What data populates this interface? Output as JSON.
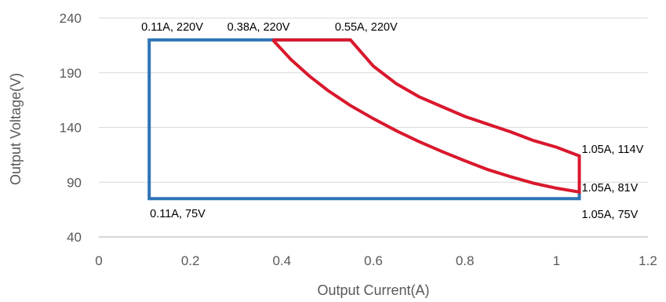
{
  "chart_data": {
    "type": "line",
    "title": "",
    "xlabel": "Output Current(A)",
    "ylabel": "Output Voltage(V)",
    "xlim": [
      0,
      1.2
    ],
    "ylim": [
      40,
      240
    ],
    "xticks": [
      0,
      0.2,
      0.4,
      0.6,
      0.8,
      1,
      1.2
    ],
    "xtick_labels": [
      "0",
      "0.2",
      "0.4",
      "0.6",
      "0.8",
      "1",
      "1.2"
    ],
    "yticks": [
      40,
      90,
      140,
      190,
      240
    ],
    "ytick_labels": [
      "40",
      "90",
      "140",
      "190",
      "240"
    ],
    "grid": "horizontal",
    "legend": "none",
    "series": [
      {
        "color": "#2e75b6",
        "points": [
          [
            0.11,
            220
          ],
          [
            0.38,
            220
          ],
          [
            0.55,
            220
          ],
          [
            0.11,
            220
          ],
          [
            0.11,
            75
          ],
          [
            1.05,
            75
          ],
          [
            1.05,
            81
          ]
        ]
      },
      {
        "color": "#d9182d",
        "points": [
          [
            0.38,
            220
          ],
          [
            0.42,
            202
          ],
          [
            0.46,
            187
          ],
          [
            0.5,
            174
          ],
          [
            0.55,
            160
          ],
          [
            0.6,
            148
          ],
          [
            0.65,
            137
          ],
          [
            0.7,
            127
          ],
          [
            0.75,
            118
          ],
          [
            0.8,
            109.5
          ],
          [
            0.85,
            101.5
          ],
          [
            0.9,
            95
          ],
          [
            0.95,
            89
          ],
          [
            1.0,
            84.5
          ],
          [
            1.05,
            81
          ],
          [
            1.05,
            114
          ],
          [
            1.0,
            122
          ],
          [
            0.95,
            128
          ],
          [
            0.9,
            136
          ],
          [
            0.85,
            143
          ],
          [
            0.8,
            150
          ],
          [
            0.75,
            159
          ],
          [
            0.7,
            168
          ],
          [
            0.65,
            180
          ],
          [
            0.6,
            196
          ],
          [
            0.55,
            220
          ],
          [
            0.38,
            220
          ]
        ]
      }
    ],
    "annotations": [
      {
        "text": "0.11A, 220V",
        "x": 0.11,
        "y": 220
      },
      {
        "text": "0.38A, 220V",
        "x": 0.38,
        "y": 220
      },
      {
        "text": "0.55A, 220V",
        "x": 0.55,
        "y": 220
      },
      {
        "text": "1.05A, 114V",
        "x": 1.05,
        "y": 114
      },
      {
        "text": "1.05A, 81V",
        "x": 1.05,
        "y": 81
      },
      {
        "text": "1.05A, 75V",
        "x": 1.05,
        "y": 75
      },
      {
        "text": "0.11A, 75V",
        "x": 0.11,
        "y": 75
      }
    ]
  }
}
